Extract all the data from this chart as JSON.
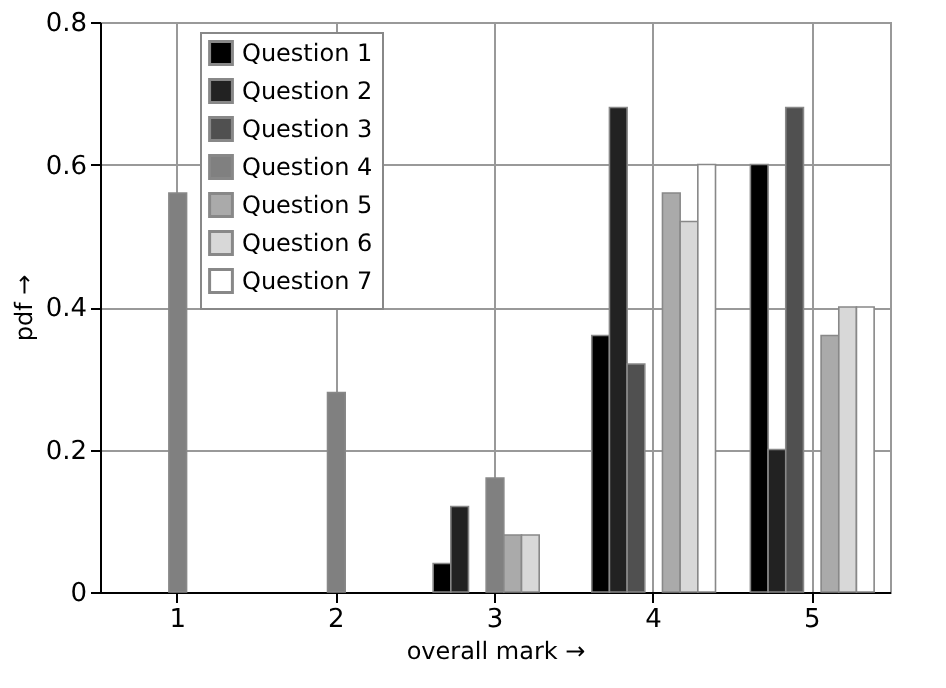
{
  "chart_data": {
    "type": "bar",
    "xlabel": "overall mark →",
    "ylabel": "pdf →",
    "categories": [
      "1",
      "2",
      "3",
      "4",
      "5"
    ],
    "series": [
      {
        "name": "Question 1",
        "color": "#000000",
        "values": [
          null,
          null,
          0.04,
          0.36,
          0.6
        ]
      },
      {
        "name": "Question 2",
        "color": "#222222",
        "values": [
          null,
          null,
          0.12,
          0.68,
          0.2
        ]
      },
      {
        "name": "Question 3",
        "color": "#505050",
        "values": [
          null,
          null,
          null,
          0.32,
          0.68
        ]
      },
      {
        "name": "Question 4",
        "color": "#808080",
        "values": [
          0.56,
          0.28,
          0.16,
          null,
          null
        ]
      },
      {
        "name": "Question 5",
        "color": "#aaaaaa",
        "values": [
          null,
          null,
          0.08,
          0.56,
          0.36
        ]
      },
      {
        "name": "Question 6",
        "color": "#d8d8d8",
        "values": [
          null,
          null,
          0.08,
          0.52,
          0.4
        ]
      },
      {
        "name": "Question 7",
        "color": "#ffffff",
        "values": [
          null,
          null,
          null,
          0.6,
          0.4
        ]
      }
    ],
    "ylim": [
      0,
      0.8
    ],
    "yticks": [
      0,
      0.2,
      0.4,
      0.6,
      0.8
    ],
    "grid": true,
    "legend": "top left"
  }
}
